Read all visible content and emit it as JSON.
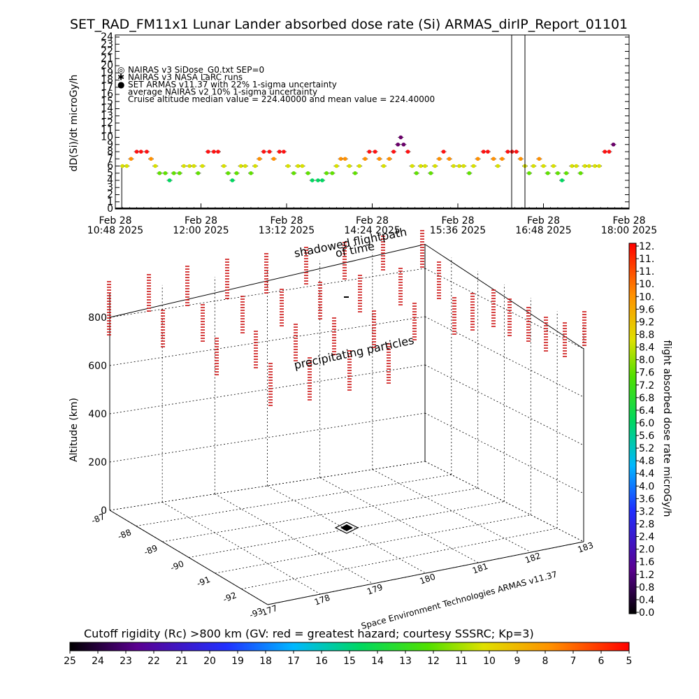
{
  "title": "SET_RAD_FM11x1  Lunar Lander absorbed dose rate (Si) ARMAS_dirIP_Report_01101",
  "top_plot": {
    "ylabel": "dD(Si)/dt microGy/h",
    "ylim": [
      0,
      24
    ],
    "yticks": [
      "0",
      "1",
      "2",
      "3",
      "4",
      "5",
      "6",
      "7",
      "8",
      "9",
      "10",
      "11",
      "12",
      "13",
      "14",
      "15",
      "16",
      "17",
      "18",
      "19",
      "20",
      "21",
      "22",
      "23",
      "24"
    ],
    "xticks": [
      {
        "line1": "Feb 28",
        "line2": "10:48 2025"
      },
      {
        "line1": "Feb 28",
        "line2": "12:00 2025"
      },
      {
        "line1": "Feb 28",
        "line2": "13:12 2025"
      },
      {
        "line1": "Feb 28",
        "line2": "14:24 2025"
      },
      {
        "line1": "Feb 28",
        "line2": "15:36 2025"
      },
      {
        "line1": "Feb 28",
        "line2": "16:48 2025"
      },
      {
        "line1": "Feb 28",
        "line2": "18:00 2025"
      }
    ],
    "legend": [
      {
        "symbol": "◎",
        "color": "#444444",
        "text": "NAIRAS v3 SiDose_G0.txt SEP=0"
      },
      {
        "symbol": "✱",
        "color": "#000000",
        "text": "NAIRAS v3 NASA LaRC runs"
      },
      {
        "symbol": "●",
        "color": "#1e3cff",
        "text": "SET ARMAS v11.37 with 22% 1-sigma uncertainty"
      },
      {
        "symbol": "",
        "color": "#000000",
        "text": "average NAIRAS v2 10% 1-sigma uncertainty"
      },
      {
        "symbol": "",
        "color": "#000000",
        "text": "Cruise altitude median value = 224.40000 and mean value = 224.40000"
      }
    ]
  },
  "chart_data": [
    {
      "type": "scatter",
      "title": "SET_RAD_FM11x1  Lunar Lander absorbed dose rate (Si) ARMAS_dirIP_Report_01101",
      "ylabel": "dD(Si)/dt microGy/h",
      "x_unit": "hours since 10:48 2025-02-28 (Feb 28)",
      "xlim": [
        0,
        7.2
      ],
      "ylim": [
        0,
        24
      ],
      "grid": false,
      "series": [
        {
          "name": "SET ARMAS v11.37 with 22% 1-sigma uncertainty",
          "points": [
            [
              0.1,
              6
            ],
            [
              0.16,
              6
            ],
            [
              0.22,
              7
            ],
            [
              0.3,
              8
            ],
            [
              0.36,
              8
            ],
            [
              0.44,
              8
            ],
            [
              0.5,
              7
            ],
            [
              0.56,
              6
            ],
            [
              0.62,
              5
            ],
            [
              0.7,
              5
            ],
            [
              0.76,
              4
            ],
            [
              0.82,
              5
            ],
            [
              0.9,
              5
            ],
            [
              0.96,
              6
            ],
            [
              1.04,
              6
            ],
            [
              1.1,
              6
            ],
            [
              1.16,
              5
            ],
            [
              1.22,
              6
            ],
            [
              1.3,
              8
            ],
            [
              1.38,
              8
            ],
            [
              1.44,
              8
            ],
            [
              1.52,
              6
            ],
            [
              1.58,
              5
            ],
            [
              1.64,
              4
            ],
            [
              1.7,
              5
            ],
            [
              1.76,
              6
            ],
            [
              1.82,
              6
            ],
            [
              1.9,
              5
            ],
            [
              1.96,
              6
            ],
            [
              2.02,
              7
            ],
            [
              2.08,
              8
            ],
            [
              2.16,
              8
            ],
            [
              2.22,
              7
            ],
            [
              2.3,
              8
            ],
            [
              2.36,
              8
            ],
            [
              2.42,
              6
            ],
            [
              2.5,
              5
            ],
            [
              2.56,
              6
            ],
            [
              2.62,
              6
            ],
            [
              2.7,
              5
            ],
            [
              2.76,
              4
            ],
            [
              2.84,
              4
            ],
            [
              2.9,
              4
            ],
            [
              2.96,
              5
            ],
            [
              3.04,
              5
            ],
            [
              3.1,
              6
            ],
            [
              3.16,
              7
            ],
            [
              3.22,
              7
            ],
            [
              3.28,
              6
            ],
            [
              3.36,
              5
            ],
            [
              3.42,
              6
            ],
            [
              3.5,
              7
            ],
            [
              3.56,
              8
            ],
            [
              3.64,
              8
            ],
            [
              3.7,
              7
            ],
            [
              3.76,
              6
            ],
            [
              3.84,
              7
            ],
            [
              3.9,
              8
            ],
            [
              3.96,
              9
            ],
            [
              4.0,
              10
            ],
            [
              4.04,
              9
            ],
            [
              4.1,
              8
            ],
            [
              4.16,
              6
            ],
            [
              4.22,
              5
            ],
            [
              4.28,
              6
            ],
            [
              4.34,
              6
            ],
            [
              4.42,
              5
            ],
            [
              4.48,
              6
            ],
            [
              4.54,
              7
            ],
            [
              4.6,
              8
            ],
            [
              4.68,
              7
            ],
            [
              4.74,
              6
            ],
            [
              4.82,
              6
            ],
            [
              4.88,
              6
            ],
            [
              4.96,
              5
            ],
            [
              5.02,
              6
            ],
            [
              5.08,
              7
            ],
            [
              5.16,
              8
            ],
            [
              5.22,
              8
            ],
            [
              5.3,
              7
            ],
            [
              5.36,
              6
            ],
            [
              5.42,
              7
            ],
            [
              5.5,
              8
            ],
            [
              5.56,
              8
            ],
            [
              5.62,
              8
            ],
            [
              5.68,
              7
            ],
            [
              5.74,
              6
            ],
            [
              5.8,
              5
            ],
            [
              5.86,
              6
            ],
            [
              5.94,
              7
            ],
            [
              6.0,
              6
            ],
            [
              6.06,
              5
            ],
            [
              6.14,
              6
            ],
            [
              6.2,
              5
            ],
            [
              6.26,
              4
            ],
            [
              6.32,
              5
            ],
            [
              6.4,
              6
            ],
            [
              6.46,
              6
            ],
            [
              6.52,
              5
            ],
            [
              6.58,
              6
            ],
            [
              6.64,
              6
            ],
            [
              6.72,
              6
            ],
            [
              6.78,
              6
            ],
            [
              6.86,
              8
            ],
            [
              6.92,
              8
            ],
            [
              6.98,
              9
            ]
          ]
        },
        {
          "name": "NAIRAS v3 NASA LaRC runs",
          "points": [
            [
              0.0,
              0
            ],
            [
              7.2,
              0
            ]
          ]
        }
      ]
    },
    {
      "type": "scatter",
      "title": "",
      "zlabel": "Altitude (km)",
      "zlim": [
        0,
        900
      ],
      "xticks": [
        "177",
        "178",
        "179",
        "180",
        "181",
        "182",
        "183"
      ],
      "yticks": [
        "-87",
        "-88",
        "-89",
        "-90",
        "-91",
        "-92",
        "-93"
      ],
      "zticks": [
        "0",
        "200",
        "400",
        "600",
        "800"
      ],
      "annotations": [
        "shadowed flightpath",
        "of time",
        "precipitating particles",
        "Space Environment Technologies ARMAS v11.37"
      ]
    }
  ],
  "ground_plot": {
    "zlabel": "Altitude (km)",
    "zticks": [
      "0",
      "200",
      "400",
      "600",
      "800"
    ],
    "xticks": [
      "177",
      "178",
      "179",
      "180",
      "181",
      "182",
      "183"
    ],
    "yticks": [
      "-87",
      "-88",
      "-89",
      "-90",
      "-91",
      "-92",
      "-93"
    ],
    "label_shadowed": "shadowed flightpath",
    "label_time": "of time",
    "label_precip": "precipitating particles",
    "credit": "Space Environment Technologies ARMAS v11.37"
  },
  "right_colorbar": {
    "label": "flight absorbed dose rate microGy/h",
    "ticks": [
      "0.0",
      "0.4",
      "0.8",
      "1.2",
      "1.6",
      "2.0",
      "2.4",
      "2.8",
      "3.2",
      "3.6",
      "4.0",
      "4.4",
      "4.8",
      "5.2",
      "5.6",
      "6.0",
      "6.4",
      "6.8",
      "7.2",
      "7.6",
      "8.0",
      "8.4",
      "8.8",
      "9.2",
      "9.6",
      "10.",
      "10.",
      "11.",
      "11.",
      "12."
    ]
  },
  "bottom_colorbar": {
    "label": "Cutoff rigidity (Rc) >800 km (GV: red = greatest hazard; courtesy SSSRC; Kp=3)",
    "ticks": [
      "25",
      "24",
      "23",
      "22",
      "21",
      "20",
      "19",
      "18",
      "17",
      "16",
      "15",
      "14",
      "13",
      "12",
      "11",
      "10",
      "9",
      "8",
      "7",
      "6",
      "5"
    ]
  },
  "colors": {
    "axis": "#000000",
    "spike": "#cc1111",
    "background": "#ffffff"
  }
}
